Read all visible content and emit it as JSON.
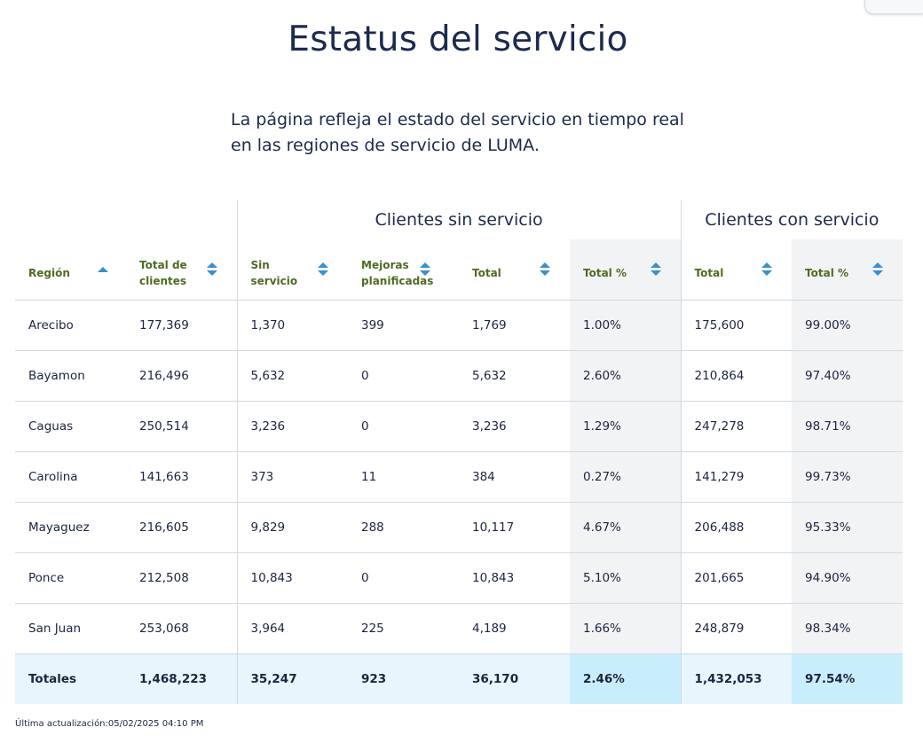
{
  "page": {
    "title": "Estatus del servicio",
    "description": "La página refleja el estado del servicio en tiempo real en las regiones de servicio de LUMA."
  },
  "table": {
    "groups": {
      "sin_servicio": "Clientes sin servicio",
      "con_servicio": "Clientes con servicio"
    },
    "columns": [
      {
        "label": "Región"
      },
      {
        "label": "Total de clientes"
      },
      {
        "label": "Sin servicio"
      },
      {
        "label": "Mejoras planificadas"
      },
      {
        "label": "Total"
      },
      {
        "label": "Total %"
      },
      {
        "label": "Total"
      },
      {
        "label": "Total %"
      }
    ],
    "rows": [
      {
        "region": "Arecibo",
        "total_clientes": "177,369",
        "sin_servicio": "1,370",
        "mejoras": "399",
        "total_sin": "1,769",
        "pct_sin": "1.00%",
        "total_con": "175,600",
        "pct_con": "99.00%"
      },
      {
        "region": "Bayamon",
        "total_clientes": "216,496",
        "sin_servicio": "5,632",
        "mejoras": "0",
        "total_sin": "5,632",
        "pct_sin": "2.60%",
        "total_con": "210,864",
        "pct_con": "97.40%"
      },
      {
        "region": "Caguas",
        "total_clientes": "250,514",
        "sin_servicio": "3,236",
        "mejoras": "0",
        "total_sin": "3,236",
        "pct_sin": "1.29%",
        "total_con": "247,278",
        "pct_con": "98.71%"
      },
      {
        "region": "Carolina",
        "total_clientes": "141,663",
        "sin_servicio": "373",
        "mejoras": "11",
        "total_sin": "384",
        "pct_sin": "0.27%",
        "total_con": "141,279",
        "pct_con": "99.73%"
      },
      {
        "region": "Mayaguez",
        "total_clientes": "216,605",
        "sin_servicio": "9,829",
        "mejoras": "288",
        "total_sin": "10,117",
        "pct_sin": "4.67%",
        "total_con": "206,488",
        "pct_con": "95.33%"
      },
      {
        "region": "Ponce",
        "total_clientes": "212,508",
        "sin_servicio": "10,843",
        "mejoras": "0",
        "total_sin": "10,843",
        "pct_sin": "5.10%",
        "total_con": "201,665",
        "pct_con": "94.90%"
      },
      {
        "region": "San Juan",
        "total_clientes": "253,068",
        "sin_servicio": "3,964",
        "mejoras": "225",
        "total_sin": "4,189",
        "pct_sin": "1.66%",
        "total_con": "248,879",
        "pct_con": "98.34%"
      }
    ],
    "totals": {
      "region": "Totales",
      "total_clientes": "1,468,223",
      "sin_servicio": "35,247",
      "mejoras": "923",
      "total_sin": "36,170",
      "pct_sin": "2.46%",
      "total_con": "1,432,053",
      "pct_con": "97.54%"
    }
  },
  "footer": {
    "updated": "Última actualización:05/02/2025 04:10 PM"
  },
  "icons": {
    "sort": "sort-arrows-icon",
    "sort_asc": "sort-asc-icon"
  },
  "colors": {
    "header_text": "#4f6b24",
    "sort_arrow": "#3a8fd0",
    "totals_row": "#e6f6fc",
    "totals_pct": "#c9eefb",
    "shaded_column": "#f2f3f5"
  }
}
